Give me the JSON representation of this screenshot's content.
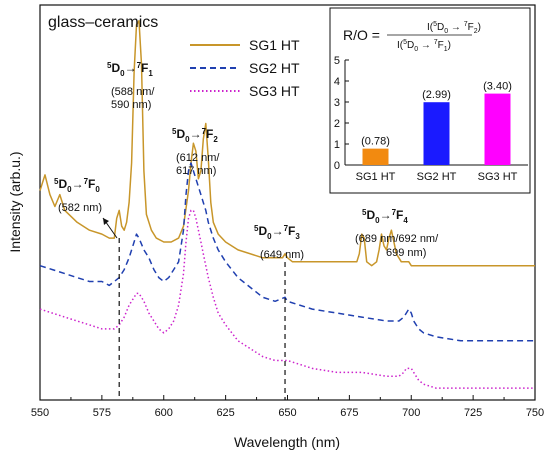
{
  "chart_data": {
    "type": "line",
    "title": "glass–ceramics",
    "xlabel": "Wavelength (nm)",
    "ylabel": "Intensity (arb.u.)",
    "xlim": [
      550,
      750
    ],
    "xticks": [
      550,
      575,
      600,
      625,
      650,
      675,
      700,
      725,
      750
    ],
    "yticks": false,
    "grid": false,
    "legend_position": "top-center",
    "series": [
      {
        "name": "SG1 HT",
        "color": "#c8962a",
        "style": "solid",
        "x": [
          550,
          551,
          552,
          554,
          556,
          558,
          560,
          565,
          570,
          575,
          578,
          580,
          581,
          582,
          583,
          584,
          585,
          586,
          587,
          588,
          589,
          590,
          591,
          592,
          593,
          595,
          597,
          600,
          603,
          606,
          608,
          610,
          611,
          612,
          613,
          614,
          615,
          616,
          617,
          618,
          619,
          620,
          622,
          625,
          630,
          640,
          645,
          648,
          649,
          650,
          652,
          660,
          670,
          675,
          678,
          679,
          680,
          681,
          682,
          684,
          686,
          687,
          688,
          689,
          690,
          691,
          692,
          693,
          694,
          696,
          699,
          700,
          702,
          705,
          710,
          720,
          730,
          740,
          750
        ],
        "y": [
          0.53,
          0.55,
          0.57,
          0.52,
          0.49,
          0.52,
          0.48,
          0.45,
          0.43,
          0.42,
          0.41,
          0.41,
          0.46,
          0.48,
          0.44,
          0.43,
          0.45,
          0.5,
          0.6,
          0.83,
          0.95,
          0.96,
          0.85,
          0.58,
          0.47,
          0.43,
          0.41,
          0.4,
          0.4,
          0.41,
          0.44,
          0.53,
          0.6,
          0.65,
          0.63,
          0.56,
          0.58,
          0.66,
          0.7,
          0.61,
          0.5,
          0.45,
          0.42,
          0.4,
          0.38,
          0.36,
          0.36,
          0.36,
          0.37,
          0.36,
          0.35,
          0.35,
          0.35,
          0.35,
          0.35,
          0.37,
          0.42,
          0.41,
          0.35,
          0.34,
          0.35,
          0.38,
          0.42,
          0.39,
          0.38,
          0.41,
          0.43,
          0.4,
          0.37,
          0.35,
          0.35,
          0.34,
          0.34,
          0.34,
          0.34,
          0.34,
          0.34,
          0.34,
          0.34
        ]
      },
      {
        "name": "SG2 HT",
        "color": "#2040b0",
        "style": "dashed",
        "x": [
          550,
          555,
          560,
          565,
          570,
          575,
          578,
          580,
          582,
          584,
          586,
          588,
          589,
          590,
          592,
          594,
          596,
          598,
          600,
          602,
          604,
          606,
          608,
          609,
          610,
          611,
          612,
          613,
          614,
          615,
          616,
          617,
          618,
          620,
          622,
          625,
          630,
          640,
          645,
          649,
          650,
          660,
          670,
          680,
          690,
          695,
          697,
          698,
          699,
          700,
          701,
          703,
          705,
          710,
          720,
          730,
          740,
          750
        ],
        "y": [
          0.34,
          0.33,
          0.32,
          0.31,
          0.3,
          0.3,
          0.29,
          0.3,
          0.31,
          0.33,
          0.36,
          0.4,
          0.42,
          0.41,
          0.38,
          0.36,
          0.33,
          0.31,
          0.3,
          0.31,
          0.33,
          0.35,
          0.43,
          0.52,
          0.58,
          0.6,
          0.58,
          0.56,
          0.54,
          0.52,
          0.5,
          0.48,
          0.45,
          0.41,
          0.38,
          0.35,
          0.31,
          0.26,
          0.25,
          0.26,
          0.25,
          0.23,
          0.22,
          0.21,
          0.2,
          0.2,
          0.21,
          0.22,
          0.23,
          0.22,
          0.2,
          0.18,
          0.17,
          0.16,
          0.15,
          0.15,
          0.15,
          0.15
        ]
      },
      {
        "name": "SG3 HT",
        "color": "#cc22cc",
        "style": "dotted",
        "x": [
          550,
          555,
          560,
          565,
          570,
          575,
          578,
          580,
          582,
          584,
          586,
          588,
          589,
          590,
          592,
          594,
          596,
          598,
          600,
          602,
          604,
          606,
          608,
          609,
          610,
          611,
          612,
          613,
          614,
          615,
          616,
          617,
          618,
          620,
          622,
          625,
          630,
          640,
          645,
          649,
          650,
          660,
          670,
          680,
          690,
          695,
          697,
          698,
          699,
          700,
          701,
          703,
          705,
          710,
          720,
          730,
          740,
          750
        ],
        "y": [
          0.23,
          0.22,
          0.21,
          0.2,
          0.19,
          0.18,
          0.18,
          0.18,
          0.19,
          0.21,
          0.24,
          0.26,
          0.27,
          0.27,
          0.25,
          0.22,
          0.2,
          0.18,
          0.17,
          0.18,
          0.2,
          0.24,
          0.32,
          0.4,
          0.46,
          0.48,
          0.48,
          0.46,
          0.43,
          0.4,
          0.37,
          0.34,
          0.31,
          0.26,
          0.22,
          0.19,
          0.15,
          0.11,
          0.1,
          0.1,
          0.1,
          0.08,
          0.07,
          0.07,
          0.06,
          0.06,
          0.07,
          0.08,
          0.08,
          0.08,
          0.07,
          0.05,
          0.04,
          0.03,
          0.03,
          0.03,
          0.03,
          0.03
        ]
      }
    ],
    "vlines": [
      582,
      649
    ],
    "annotations": [
      {
        "level": "5",
        "sub0": "D",
        "sub1": "0",
        "arrow": "→",
        "sup": "7",
        "term": "F",
        "sub2": "0",
        "detail": [
          "(582 nm)"
        ],
        "x": 572,
        "y": 0.6
      },
      {
        "level": "5",
        "sub0": "D",
        "sub1": "0",
        "arrow": "→",
        "sup": "7",
        "term": "F",
        "sub2": "1",
        "detail": [
          "(588 nm/",
          "590 nm)"
        ],
        "x": 585,
        "y": 1.1
      },
      {
        "level": "5",
        "sub0": "D",
        "sub1": "0",
        "arrow": "→",
        "sup": "7",
        "term": "F",
        "sub2": "2",
        "detail": [
          "(612 nm/",
          "617 nm)"
        ],
        "x": 618,
        "y": 0.88
      },
      {
        "level": "5",
        "sub0": "D",
        "sub1": "0",
        "arrow": "→",
        "sup": "7",
        "term": "F",
        "sub2": "3",
        "detail": [
          "(649 nm)"
        ],
        "x": 650,
        "y": 0.55
      },
      {
        "level": "5",
        "sub0": "D",
        "sub1": "0",
        "arrow": "→",
        "sup": "7",
        "term": "F",
        "sub2": "4",
        "detail": [
          "(689 nm/692 nm/",
          "699 nm)"
        ],
        "x": 692,
        "y": 0.58
      }
    ],
    "inset": {
      "type": "bar",
      "title_prefix": "R/O =",
      "fraction_top": {
        "open": "I(",
        "sup1": "5",
        "d": "D",
        "sub1": "0",
        "arrow": " → ",
        "sup2": "7",
        "f": "F",
        "sub2": "2",
        "close": ")"
      },
      "fraction_bottom": {
        "open": "I(",
        "sup1": "5",
        "d": "D",
        "sub1": "0",
        "arrow": " → ",
        "sup2": "7",
        "f": "F",
        "sub2": "1",
        "close": ")"
      },
      "categories": [
        "SG1 HT",
        "SG2 HT",
        "SG3 HT"
      ],
      "values": [
        0.78,
        2.99,
        3.4
      ],
      "value_labels": [
        "(0.78)",
        "(2.99)",
        "(3.40)"
      ],
      "colors": [
        "#f28a10",
        "#1a1aff",
        "#ff00ff"
      ],
      "ylim": [
        0,
        5
      ],
      "yticks": [
        "0",
        "1",
        "2",
        "3",
        "4",
        "5"
      ]
    }
  }
}
